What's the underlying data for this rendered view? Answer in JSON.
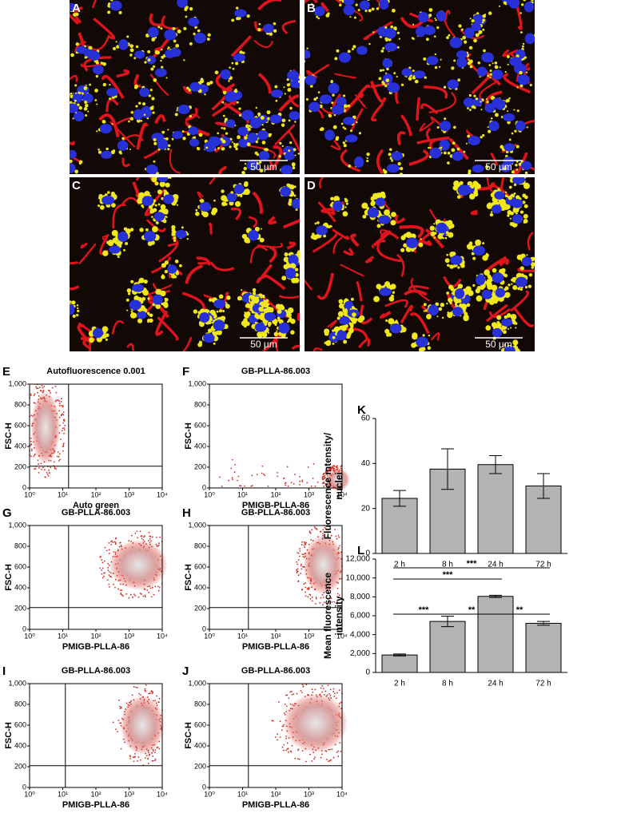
{
  "images": [
    {
      "label": "A",
      "scale_bar": "50 µm"
    },
    {
      "label": "B",
      "scale_bar": "50 µm"
    },
    {
      "label": "C",
      "scale_bar": "50 µm"
    },
    {
      "label": "D",
      "scale_bar": "50 µm"
    }
  ],
  "chart_data": [
    {
      "type": "density",
      "label": "E",
      "title": "Autofluorescence 0.001",
      "xlabel": "Auto green",
      "ylabel": "FSC-H",
      "xscale": "log",
      "xlim": [
        1,
        10000
      ],
      "ylim": [
        0,
        1000
      ],
      "xticks": [
        {
          "value": 1,
          "label": "10⁰"
        },
        {
          "value": 10,
          "label": "10¹"
        },
        {
          "value": 100,
          "label": "10²"
        },
        {
          "value": 1000,
          "label": "10³"
        },
        {
          "value": 10000,
          "label": "10⁴"
        }
      ],
      "yticks": [
        0,
        200,
        400,
        600,
        800,
        {
          "value": 1000,
          "label": "1,000"
        }
      ],
      "gate_x": 15,
      "gate_y": 210
    },
    {
      "type": "density",
      "label": "F",
      "title": "GB-PLLA-86.003",
      "xlabel": "PMIGB-PLLA-86",
      "ylabel": "FSC-H",
      "xscale": "log",
      "xlim": [
        1,
        10000
      ],
      "ylim": [
        0,
        1000
      ],
      "xticks": [
        {
          "value": 1,
          "label": "10⁰"
        },
        {
          "value": 10,
          "label": "10¹"
        },
        {
          "value": 100,
          "label": "10²"
        },
        {
          "value": 1000,
          "label": "10³"
        },
        {
          "value": 10000,
          "label": "10⁴"
        }
      ],
      "yticks": [
        0,
        200,
        400,
        600,
        800,
        {
          "value": 1000,
          "label": "1,000"
        }
      ]
    },
    {
      "type": "density",
      "label": "G",
      "title": "GB-PLLA-86.003",
      "xlabel": "PMIGB-PLLA-86",
      "ylabel": "FSC-H",
      "xscale": "log",
      "xlim": [
        1,
        10000
      ],
      "ylim": [
        0,
        1000
      ],
      "xticks": [
        {
          "value": 1,
          "label": "10⁰"
        },
        {
          "value": 10,
          "label": "10¹"
        },
        {
          "value": 100,
          "label": "10²"
        },
        {
          "value": 1000,
          "label": "10³"
        },
        {
          "value": 10000,
          "label": "10⁴"
        }
      ],
      "yticks": [
        0,
        200,
        400,
        600,
        800,
        {
          "value": 1000,
          "label": "1,000"
        }
      ],
      "gate_x": 15,
      "gate_y": 210
    },
    {
      "type": "density",
      "label": "H",
      "title": "GB-PLLA-86.003",
      "xlabel": "PMIGB-PLLA-86",
      "ylabel": "FSC-H",
      "xscale": "log",
      "xlim": [
        1,
        10000
      ],
      "ylim": [
        0,
        1000
      ],
      "xticks": [
        {
          "value": 1,
          "label": "10⁰"
        },
        {
          "value": 10,
          "label": "10¹"
        },
        {
          "value": 100,
          "label": "10²"
        },
        {
          "value": 1000,
          "label": "10³"
        },
        {
          "value": 10000,
          "label": "10⁴"
        }
      ],
      "yticks": [
        0,
        200,
        400,
        600,
        800,
        {
          "value": 1000,
          "label": "1,000"
        }
      ],
      "gate_x": 15,
      "gate_y": 210
    },
    {
      "type": "density",
      "label": "I",
      "title": "GB-PLLA-86.003",
      "xlabel": "PMIGB-PLLA-86",
      "ylabel": "FSC-H",
      "xscale": "log",
      "xlim": [
        1,
        10000
      ],
      "ylim": [
        0,
        1000
      ],
      "xticks": [
        {
          "value": 1,
          "label": "10⁰"
        },
        {
          "value": 10,
          "label": "10¹"
        },
        {
          "value": 100,
          "label": "10²"
        },
        {
          "value": 1000,
          "label": "10³"
        },
        {
          "value": 10000,
          "label": "10⁴"
        }
      ],
      "yticks": [
        0,
        200,
        400,
        600,
        800,
        {
          "value": 1000,
          "label": "1,000"
        }
      ],
      "gate_x": 12,
      "gate_y": 210
    },
    {
      "type": "density",
      "label": "J",
      "title": "GB-PLLA-86.003",
      "xlabel": "PMIGB-PLLA-86",
      "ylabel": "FSC-H",
      "xscale": "log",
      "xlim": [
        1,
        10000
      ],
      "ylim": [
        0,
        1000
      ],
      "xticks": [
        {
          "value": 1,
          "label": "10⁰"
        },
        {
          "value": 10,
          "label": "10¹"
        },
        {
          "value": 100,
          "label": "10²"
        },
        {
          "value": 1000,
          "label": "10³"
        },
        {
          "value": 10000,
          "label": "10⁴"
        }
      ],
      "yticks": [
        0,
        200,
        400,
        600,
        800,
        {
          "value": 1000,
          "label": "1,000"
        }
      ],
      "gate_x": 15,
      "gate_y": 210
    },
    {
      "type": "bar",
      "label": "K",
      "ylabel": [
        "Fluorescence intensity/",
        "nuclei"
      ],
      "categories": [
        "2 h",
        "8 h",
        "24 h",
        "72 h"
      ],
      "values": [
        24.5,
        37.5,
        39.5,
        30
      ],
      "errors": [
        3.5,
        9,
        4,
        5.5
      ],
      "color": "#b3b3b3",
      "ylim": [
        0,
        60
      ],
      "yticks": [
        0,
        20,
        40,
        60
      ]
    },
    {
      "type": "bar",
      "label": "L",
      "ylabel": [
        "Mean fluorescence",
        "intensity"
      ],
      "categories": [
        "2 h",
        "8 h",
        "24 h",
        "72 h"
      ],
      "values": [
        1850,
        5400,
        8050,
        5200
      ],
      "errors": [
        100,
        550,
        120,
        200
      ],
      "color": "#b3b3b3",
      "ylim": [
        0,
        12000
      ],
      "yticks": [
        0,
        {
          "value": 2000,
          "label": "2,000"
        },
        {
          "value": 4000,
          "label": "4,000"
        },
        {
          "value": 6000,
          "label": "6,000"
        },
        {
          "value": 8000,
          "label": "8,000"
        },
        {
          "value": 10000,
          "label": "10,000"
        },
        {
          "value": 12000,
          "label": "12,000"
        }
      ],
      "significance": [
        {
          "from": 0,
          "to": 3,
          "label": "***"
        },
        {
          "from": 0,
          "to": 2,
          "label": "***"
        },
        {
          "from": 0,
          "to": 1,
          "label": "***"
        },
        {
          "from": 1,
          "to": 2,
          "label": "**"
        },
        {
          "from": 2,
          "to": 3,
          "label": "**"
        }
      ]
    }
  ]
}
